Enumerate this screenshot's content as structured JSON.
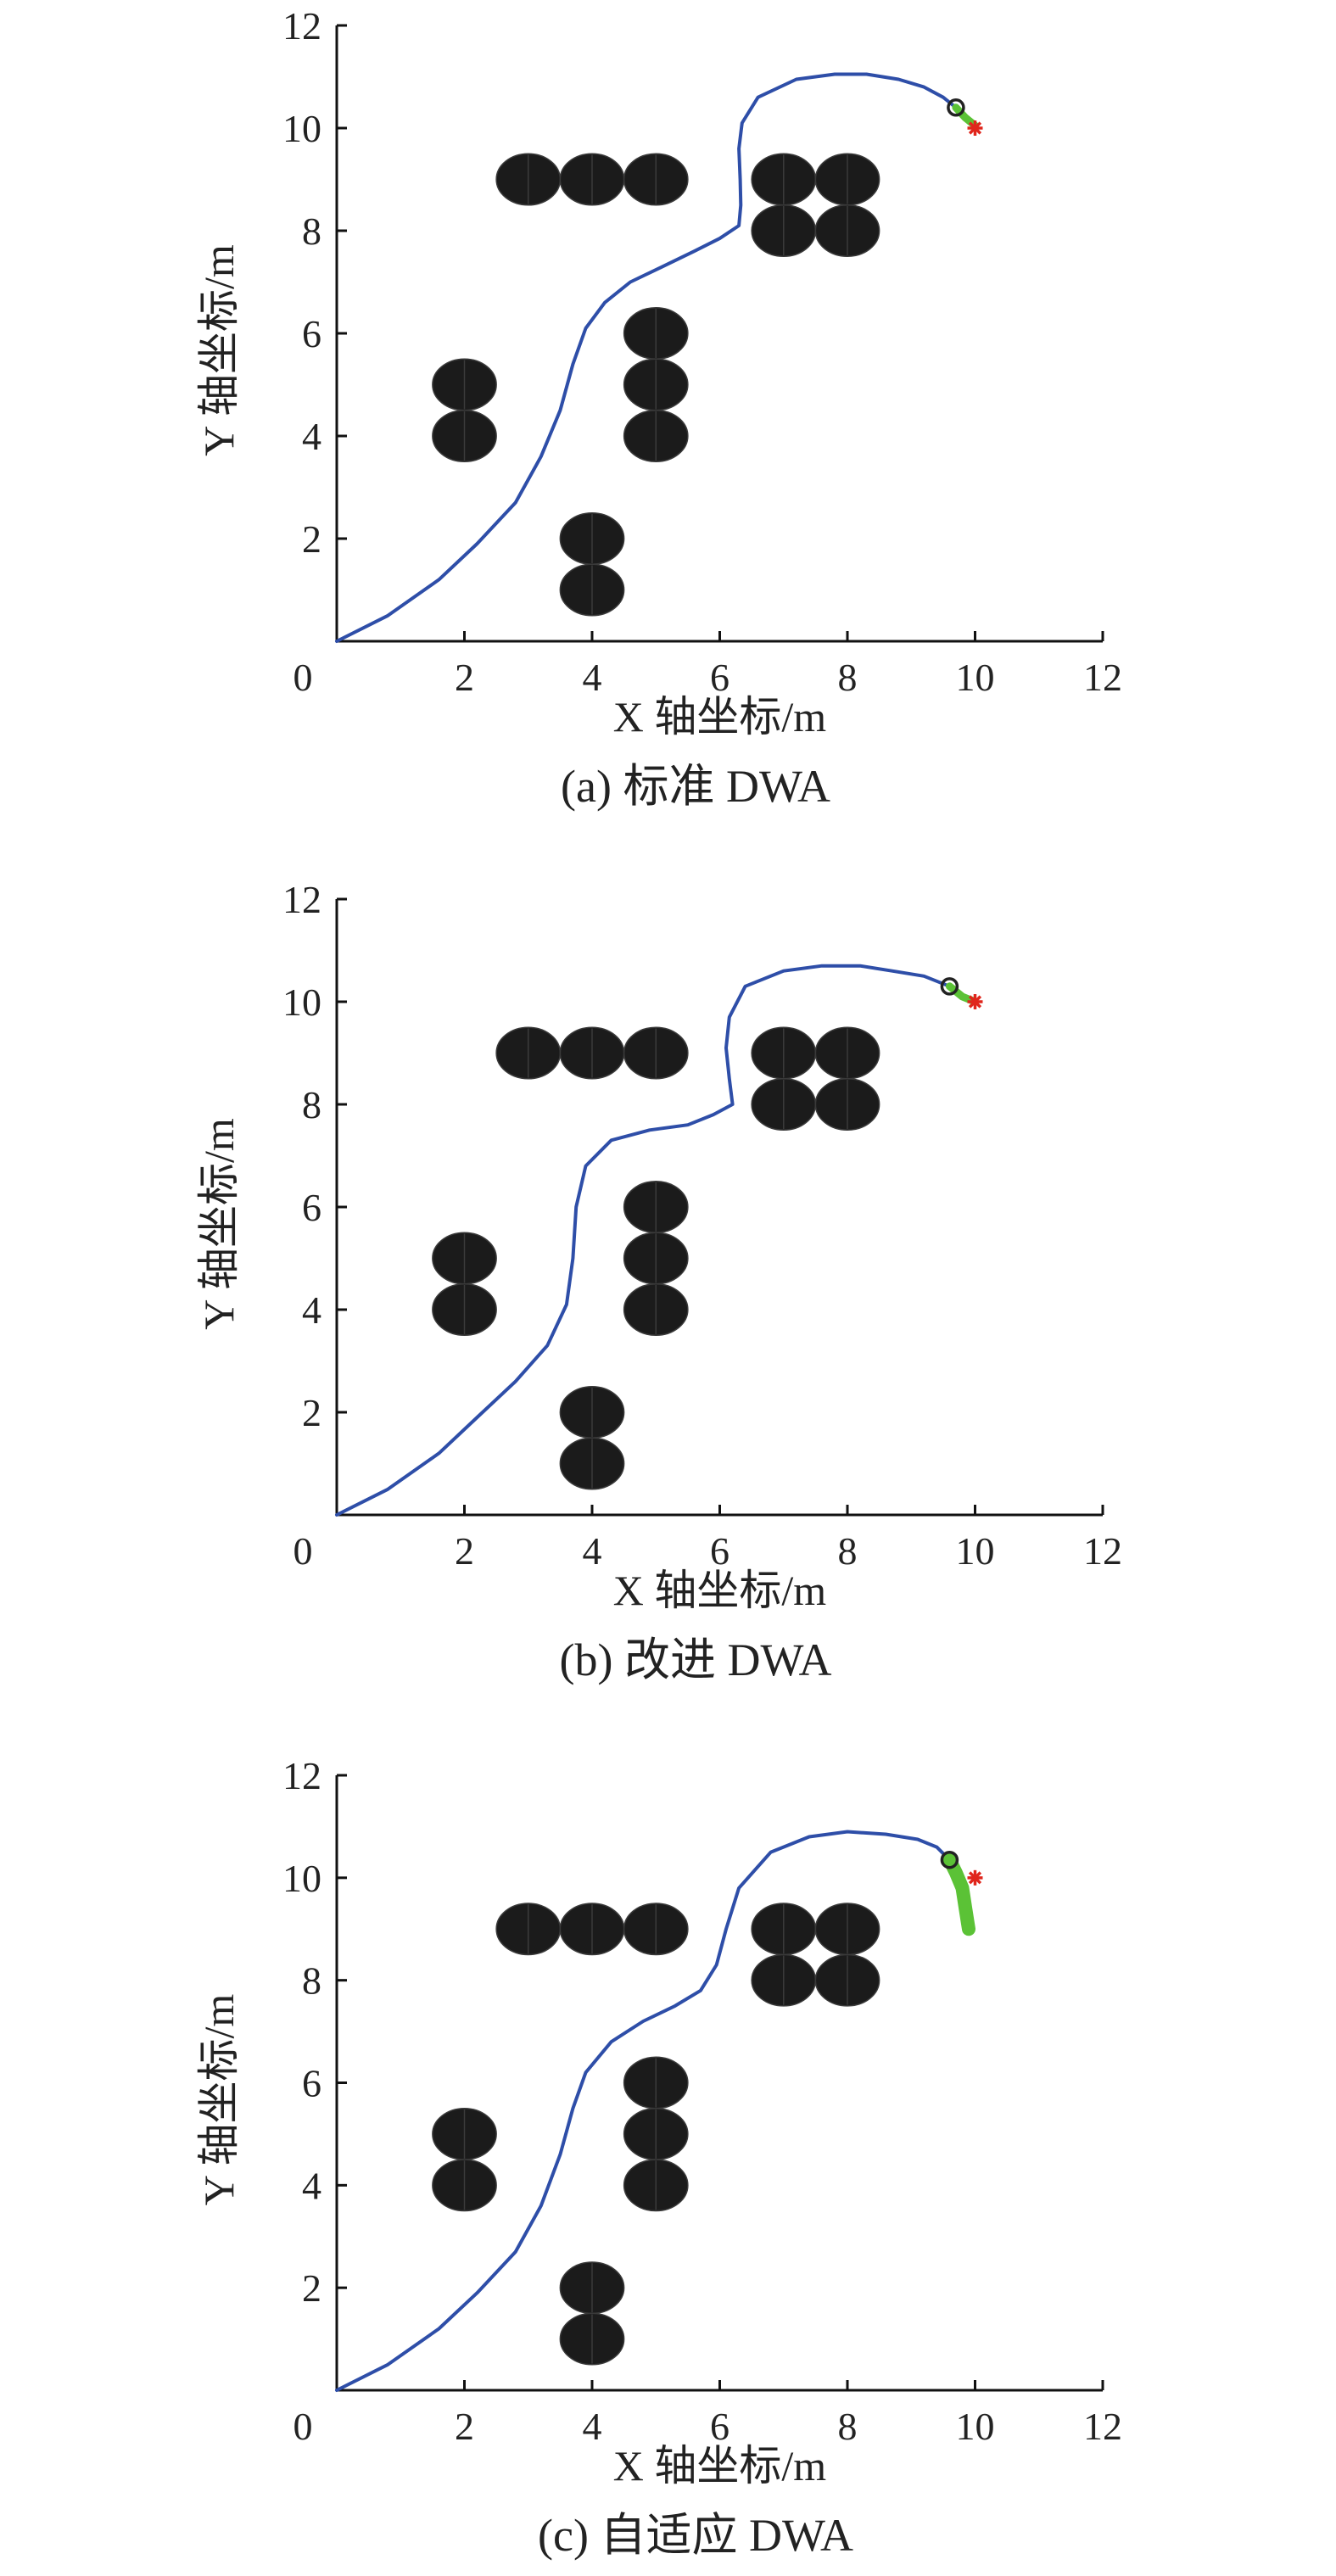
{
  "chart_data": [
    {
      "type": "line",
      "caption": "(a) 标准 DWA",
      "xlabel": "X 轴坐标/m",
      "ylabel": "Y 轴坐标/m",
      "xlim": [
        0,
        12
      ],
      "ylim": [
        0,
        12
      ],
      "xticks": [
        "0",
        "2",
        "4",
        "6",
        "8",
        "10",
        "12"
      ],
      "yticks": [
        "2",
        "4",
        "6",
        "8",
        "10",
        "12"
      ],
      "colors": {
        "path": "#2e4ea8",
        "robot": "#222222",
        "prediction": "#5bc236",
        "goal": "#e0261c"
      },
      "obstacles": [
        [
          3,
          9
        ],
        [
          4,
          9
        ],
        [
          5,
          9
        ],
        [
          7,
          9
        ],
        [
          8,
          9
        ],
        [
          7,
          8
        ],
        [
          8,
          8
        ],
        [
          2,
          5
        ],
        [
          2,
          4
        ],
        [
          5,
          6
        ],
        [
          5,
          5
        ],
        [
          5,
          4
        ],
        [
          4,
          2
        ],
        [
          4,
          1
        ]
      ],
      "series": [
        {
          "x": [
            0,
            0.8,
            1.6,
            2.2,
            2.8,
            3.2,
            3.5,
            3.7,
            3.9,
            4.2,
            4.6,
            5.1,
            5.6,
            6.0,
            6.3,
            6.33,
            6.32,
            6.3,
            6.35,
            6.6,
            7.2,
            7.8,
            8.3,
            8.8,
            9.2,
            9.5,
            9.7
          ],
          "y": [
            0,
            0.5,
            1.2,
            1.9,
            2.7,
            3.6,
            4.5,
            5.4,
            6.1,
            6.6,
            7.0,
            7.3,
            7.6,
            7.85,
            8.1,
            8.5,
            9.0,
            9.6,
            10.1,
            10.6,
            10.95,
            11.05,
            11.05,
            10.95,
            10.8,
            10.6,
            10.4
          ]
        }
      ],
      "robot": [
        9.7,
        10.4
      ],
      "goal": [
        10,
        10
      ],
      "prediction": {
        "x": [
          9.7,
          9.85,
          10
        ],
        "y": [
          10.4,
          10.2,
          10.05
        ]
      }
    },
    {
      "type": "line",
      "caption": "(b) 改进 DWA",
      "xlabel": "X 轴坐标/m",
      "ylabel": "Y 轴坐标/m",
      "xlim": [
        0,
        12
      ],
      "ylim": [
        0,
        12
      ],
      "xticks": [
        "0",
        "2",
        "4",
        "6",
        "8",
        "10",
        "12"
      ],
      "yticks": [
        "2",
        "4",
        "6",
        "8",
        "10",
        "12"
      ],
      "colors": {
        "path": "#2e4ea8",
        "robot": "#222222",
        "prediction": "#5bc236",
        "goal": "#e0261c"
      },
      "obstacles": [
        [
          3,
          9
        ],
        [
          4,
          9
        ],
        [
          5,
          9
        ],
        [
          7,
          9
        ],
        [
          8,
          9
        ],
        [
          7,
          8
        ],
        [
          8,
          8
        ],
        [
          2,
          5
        ],
        [
          2,
          4
        ],
        [
          5,
          6
        ],
        [
          5,
          5
        ],
        [
          5,
          4
        ],
        [
          4,
          2
        ],
        [
          4,
          1
        ]
      ],
      "series": [
        {
          "x": [
            0,
            0.8,
            1.6,
            2.2,
            2.8,
            3.3,
            3.6,
            3.7,
            3.75,
            3.9,
            4.3,
            4.9,
            5.5,
            5.9,
            6.2,
            6.15,
            6.1,
            6.15,
            6.4,
            7.0,
            7.6,
            8.2,
            8.7,
            9.2,
            9.6
          ],
          "y": [
            0,
            0.5,
            1.2,
            1.9,
            2.6,
            3.3,
            4.1,
            5.0,
            6.0,
            6.8,
            7.3,
            7.5,
            7.6,
            7.8,
            8.0,
            8.5,
            9.1,
            9.7,
            10.3,
            10.6,
            10.7,
            10.7,
            10.6,
            10.5,
            10.3
          ]
        }
      ],
      "robot": [
        9.6,
        10.3
      ],
      "goal": [
        10,
        10
      ],
      "prediction": {
        "x": [
          9.6,
          9.8,
          10
        ],
        "y": [
          10.3,
          10.1,
          10.0
        ]
      }
    },
    {
      "type": "line",
      "caption": "(c) 自适应 DWA",
      "xlabel": "X 轴坐标/m",
      "ylabel": "Y 轴坐标/m",
      "xlim": [
        0,
        12
      ],
      "ylim": [
        0,
        12
      ],
      "xticks": [
        "0",
        "2",
        "4",
        "6",
        "8",
        "10",
        "12"
      ],
      "yticks": [
        "2",
        "4",
        "6",
        "8",
        "10",
        "12"
      ],
      "colors": {
        "path": "#2e4ea8",
        "robot": "#222222",
        "prediction": "#5bc236",
        "goal": "#e0261c"
      },
      "obstacles": [
        [
          3,
          9
        ],
        [
          4,
          9
        ],
        [
          5,
          9
        ],
        [
          7,
          9
        ],
        [
          8,
          9
        ],
        [
          7,
          8
        ],
        [
          8,
          8
        ],
        [
          2,
          5
        ],
        [
          2,
          4
        ],
        [
          5,
          6
        ],
        [
          5,
          5
        ],
        [
          5,
          4
        ],
        [
          4,
          2
        ],
        [
          4,
          1
        ]
      ],
      "series": [
        {
          "x": [
            0,
            0.8,
            1.6,
            2.2,
            2.8,
            3.2,
            3.5,
            3.7,
            3.9,
            4.3,
            4.8,
            5.3,
            5.7,
            5.95,
            6.1,
            6.3,
            6.8,
            7.4,
            8.0,
            8.6,
            9.1,
            9.4,
            9.6
          ],
          "y": [
            0,
            0.5,
            1.2,
            1.9,
            2.7,
            3.6,
            4.6,
            5.5,
            6.2,
            6.8,
            7.2,
            7.5,
            7.8,
            8.3,
            9.0,
            9.8,
            10.5,
            10.8,
            10.9,
            10.85,
            10.75,
            10.6,
            10.35
          ]
        }
      ],
      "robot": [
        9.6,
        10.35
      ],
      "goal": [
        10,
        10
      ],
      "prediction": {
        "x": [
          9.6,
          9.7,
          9.8,
          9.85,
          9.9
        ],
        "y": [
          10.35,
          10.1,
          9.8,
          9.4,
          9.0
        ]
      }
    }
  ]
}
